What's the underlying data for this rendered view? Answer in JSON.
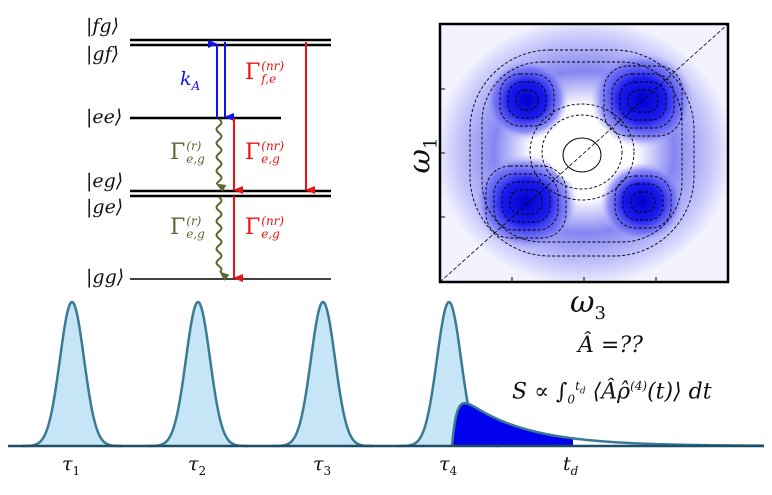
{
  "levels": {
    "fg": "|fg⟩",
    "gf": "|gf⟩",
    "ee": "|ee⟩",
    "eg": "|eg⟩",
    "ge": "|ge⟩",
    "gg": "|gg⟩"
  },
  "rates": {
    "kA": "k",
    "kA_sub": "A",
    "gamma": "Γ",
    "nr_sup": "(nr)",
    "r_sup": "(r)",
    "fe_sub": "f,e",
    "eg_sub": "e,g"
  },
  "spectrum": {
    "y_axis": "ω",
    "y_axis_sub": "1",
    "x_axis": "ω",
    "x_axis_sub": "3"
  },
  "pulses": {
    "labels": [
      "τ",
      "τ",
      "τ",
      "τ"
    ],
    "subs": [
      "1",
      "2",
      "3",
      "4"
    ],
    "td": "t",
    "td_sub": "d"
  },
  "equations": {
    "operator": "Â =??",
    "signal": "S ∝ ∫",
    "signal_lower": "0",
    "signal_upper": "t",
    "signal_upper_sub": "d",
    "signal_body": "⟨Âρ̂",
    "signal_sup": "(4)",
    "signal_tail": "(t)⟩ dt"
  },
  "colors": {
    "excitation": "#1111ee",
    "nonradiative": "#ee1111",
    "radiative": "#556b2f",
    "pulse_fill": "#c6e6f7",
    "pulse_line": "#3a7a96",
    "signal_fill": "#0000ee"
  }
}
